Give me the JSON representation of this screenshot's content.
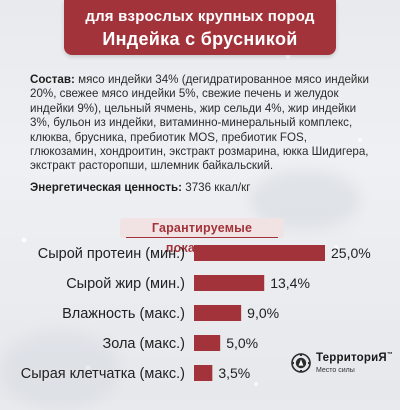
{
  "header": {
    "line1": "для взрослых крупных пород",
    "line2": "Индейка с брусникой"
  },
  "composition": {
    "label": "Состав:",
    "text": "мясо индейки 34% (дегидратированное мясо индейки 20%, свежее мясо индейки 5%, свежие печень и желудок индейки 9%), цельный ячмень, жир сельди 4%, жир индейки 3%, бульон из индейки, витаминно-минеральный комплекс, клюква, брусника, пребиотик MOS, пребиотик FOS, глюкозамин, хондроитин, экстракт розмарина, юкка Шидигера, экстракт расторопши, шлемник байкальский."
  },
  "energy": {
    "label": "Энергетическая ценность:",
    "value": "3736 ккал/кг"
  },
  "chart_data": {
    "type": "bar",
    "orientation": "horizontal",
    "title": "Гарантируемые показатели",
    "categories": [
      "Сырой протеин (мин.)",
      "Сырой жир (мин.)",
      "Влажность (макс.)",
      "Зола (макс.)",
      "Сырая клетчатка (макс.)"
    ],
    "values": [
      25.0,
      13.4,
      9.0,
      5.0,
      3.5
    ],
    "value_labels": [
      "25,0%",
      "13,4%",
      "9,0%",
      "5,0%",
      "3,5%"
    ],
    "unit": "%",
    "xlim": [
      0,
      25
    ],
    "bar_color": "#a3333b",
    "grid": false,
    "legend": "none"
  },
  "logo": {
    "name": "ТерриториЯ",
    "trademark": "™",
    "tagline": "Место силы"
  },
  "colors": {
    "brand": "#a3333b",
    "text": "#2b2b2b"
  }
}
